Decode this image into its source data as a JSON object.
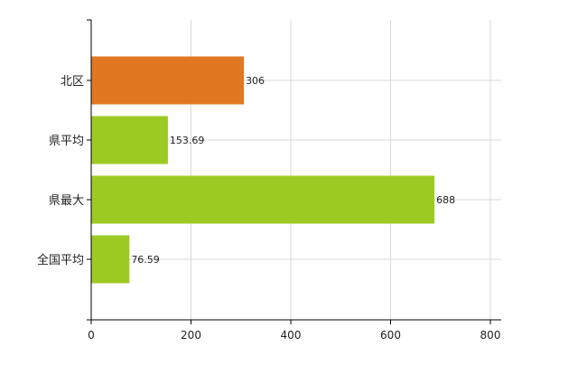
{
  "chart_data": {
    "type": "bar",
    "orientation": "horizontal",
    "categories": [
      "北区",
      "県平均",
      "県最大",
      "全国平均"
    ],
    "values": [
      306,
      153.69,
      688,
      76.59
    ],
    "value_labels": [
      "306",
      "153.69",
      "688",
      "76.59"
    ],
    "colors": [
      "#e27722",
      "#9dca22",
      "#9dca22",
      "#9dca22"
    ],
    "title": "",
    "xlabel": "",
    "ylabel": "",
    "xlim": [
      0,
      800
    ],
    "xticks": [
      0,
      200,
      400,
      600,
      800
    ],
    "xtick_labels": [
      "0",
      "200",
      "400",
      "600",
      "800"
    ],
    "grid": true,
    "legend": "none"
  }
}
